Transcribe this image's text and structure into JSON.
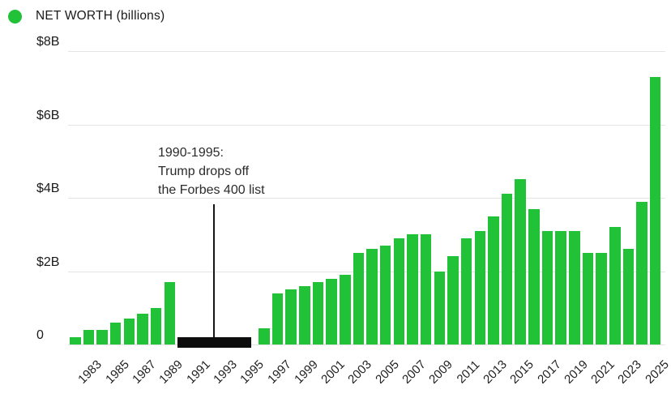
{
  "legend": {
    "label": "NET WORTH (billions)"
  },
  "chart_data": {
    "type": "bar",
    "title": "",
    "legend_label": "NET WORTH (billions)",
    "units": "billions USD",
    "ylim": [
      0,
      8
    ],
    "grid": "horizontal",
    "legend_position": "top-left",
    "x_years": [
      1982,
      1983,
      1984,
      1985,
      1986,
      1987,
      1988,
      1989,
      1990,
      1991,
      1992,
      1993,
      1994,
      1995,
      1996,
      1997,
      1998,
      1999,
      2000,
      2001,
      2002,
      2003,
      2004,
      2005,
      2006,
      2007,
      2008,
      2009,
      2010,
      2011,
      2012,
      2013,
      2014,
      2015,
      2016,
      2017,
      2018,
      2019,
      2020,
      2021,
      2022,
      2023,
      2024,
      2025
    ],
    "values": [
      0.2,
      0.4,
      0.4,
      0.6,
      0.7,
      0.85,
      1.0,
      1.7,
      null,
      null,
      null,
      null,
      null,
      null,
      0.45,
      1.4,
      1.5,
      1.6,
      1.7,
      1.8,
      1.9,
      2.5,
      2.6,
      2.7,
      2.9,
      3.0,
      3.0,
      2.0,
      2.4,
      2.9,
      3.1,
      3.5,
      4.1,
      4.5,
      3.7,
      3.1,
      3.1,
      3.1,
      2.5,
      2.5,
      3.2,
      2.6,
      3.9,
      7.3
    ],
    "yticks": [
      {
        "label": "$8B",
        "value": 8
      },
      {
        "label": "$6B",
        "value": 6
      },
      {
        "label": "$4B",
        "value": 4
      },
      {
        "label": "$2B",
        "value": 2
      },
      {
        "label": "0",
        "value": 0
      }
    ],
    "xticks": [
      "1983",
      "1985",
      "1987",
      "1989",
      "1991",
      "1993",
      "1995",
      "1997",
      "1999",
      "2001",
      "2003",
      "2005",
      "2007",
      "2009",
      "2011",
      "2013",
      "2015",
      "2017",
      "2019",
      "2021",
      "2023",
      "2025"
    ],
    "annotation": {
      "lines": [
        "1990-1995:",
        "Trump drops off",
        "the Forbes 400 list"
      ],
      "span": {
        "from": 1990,
        "to": 1995
      }
    },
    "blackout": {
      "from": 1990,
      "to": 1995
    },
    "colors": {
      "bar": "#21c138",
      "blackout": "#0d0d0d",
      "gridline": "#e4e4e4",
      "text": "#1a1a1a"
    }
  }
}
